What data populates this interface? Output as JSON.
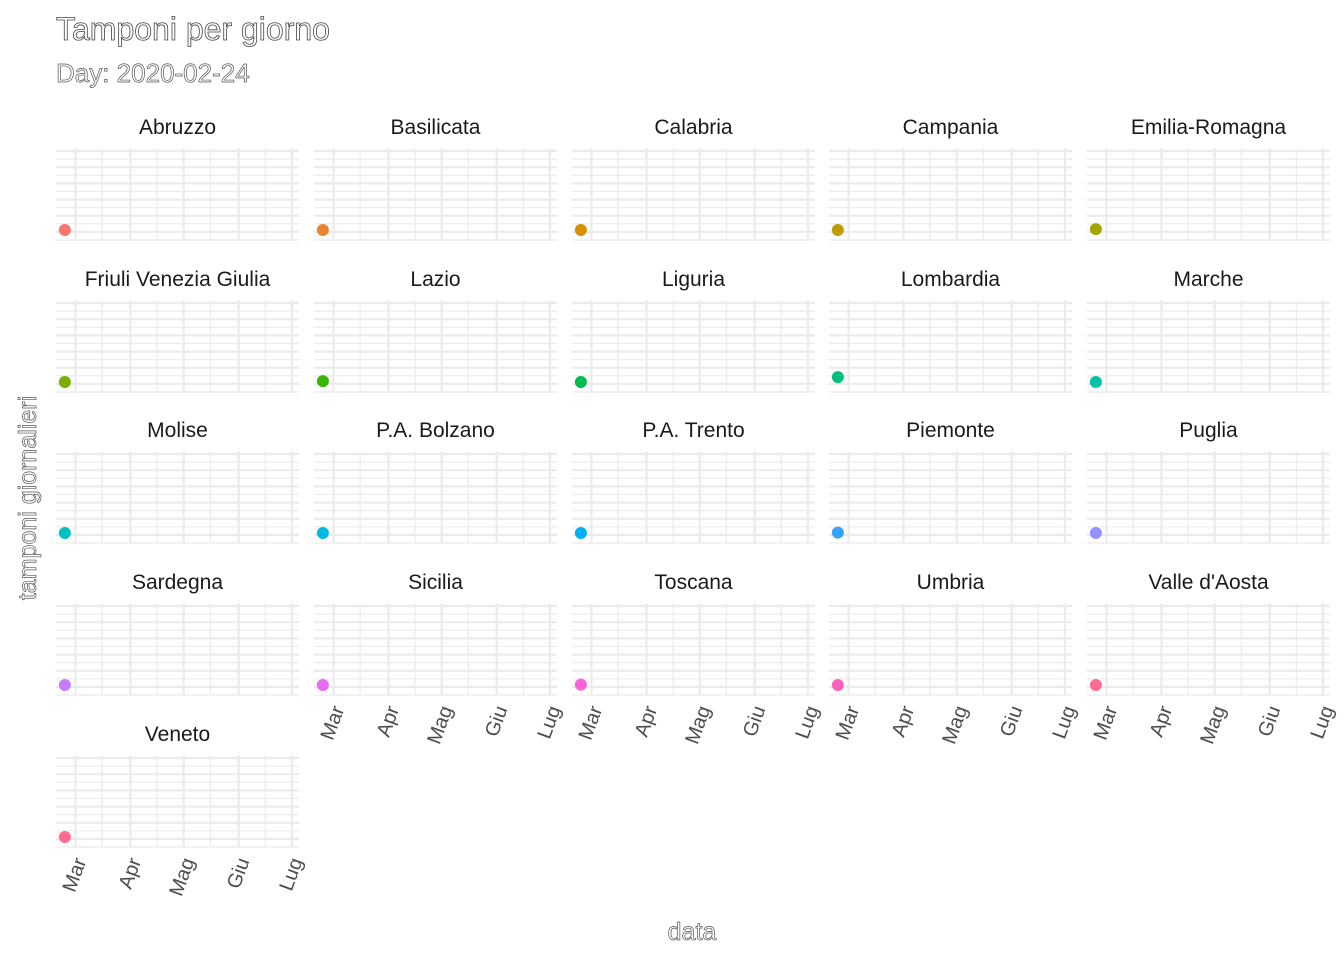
{
  "chart_data": {
    "type": "scatter",
    "title": "Tamponi per giorno",
    "subtitle": "Day: 2020-02-24",
    "xlabel": "data",
    "ylabel": "tamponi giornalieri",
    "x_ticks": [
      "Mar",
      "Apr",
      "Mag",
      "Giu",
      "Lug"
    ],
    "x_tick_dates": [
      "2020-03-01",
      "2020-04-01",
      "2020-05-01",
      "2020-06-01",
      "2020-07-01"
    ],
    "xlim": [
      "2020-02-19",
      "2020-07-05"
    ],
    "grid": true,
    "legend": "none",
    "date": "2020-02-24",
    "panels": [
      {
        "name": "Abruzzo",
        "color": "#F8766D",
        "value": 0
      },
      {
        "name": "Basilicata",
        "color": "#EA8331",
        "value": 0
      },
      {
        "name": "Calabria",
        "color": "#D89000",
        "value": 0
      },
      {
        "name": "Campania",
        "color": "#C09B00",
        "value": 0
      },
      {
        "name": "Emilia-Romagna",
        "color": "#A3A500",
        "value": 0.1
      },
      {
        "name": "Friuli Venezia Giulia",
        "color": "#7CAE00",
        "value": 0
      },
      {
        "name": "Lazio",
        "color": "#39B600",
        "value": 0.1
      },
      {
        "name": "Liguria",
        "color": "#00BB4E",
        "value": 0
      },
      {
        "name": "Lombardia",
        "color": "#00BF7D",
        "value": 0.6
      },
      {
        "name": "Marche",
        "color": "#00C1A3",
        "value": 0
      },
      {
        "name": "Molise",
        "color": "#00BFC4",
        "value": 0
      },
      {
        "name": "P.A. Bolzano",
        "color": "#00BAE0",
        "value": 0
      },
      {
        "name": "P.A. Trento",
        "color": "#00B0F6",
        "value": 0
      },
      {
        "name": "Piemonte",
        "color": "#35A2FF",
        "value": 0.05
      },
      {
        "name": "Puglia",
        "color": "#9590FF",
        "value": 0
      },
      {
        "name": "Sardegna",
        "color": "#C77CFF",
        "value": 0
      },
      {
        "name": "Sicilia",
        "color": "#E76BF3",
        "value": 0
      },
      {
        "name": "Toscana",
        "color": "#FA62DB",
        "value": 0.05
      },
      {
        "name": "Umbria",
        "color": "#FF62BC",
        "value": 0
      },
      {
        "name": "Valle d'Aosta",
        "color": "#FF6C91",
        "value": 0
      },
      {
        "name": "Veneto",
        "color": "#FF6C91",
        "value": 0
      }
    ],
    "ylim": [
      0,
      10
    ]
  }
}
